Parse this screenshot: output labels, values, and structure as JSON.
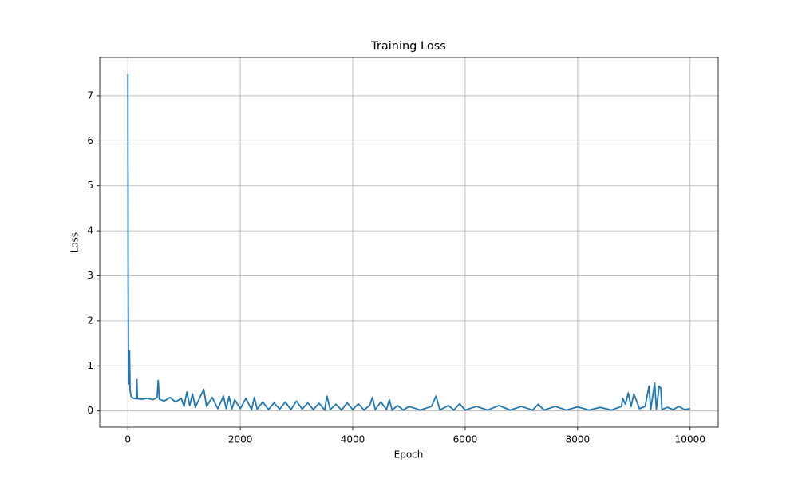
{
  "chart_data": {
    "type": "line",
    "title": "Training Loss",
    "x_label": "Epoch",
    "y_label": "Loss",
    "x": [
      0,
      5,
      10,
      20,
      30,
      40,
      60,
      100,
      150,
      160,
      170,
      250,
      350,
      450,
      520,
      540,
      560,
      650,
      750,
      850,
      950,
      1000,
      1050,
      1100,
      1150,
      1200,
      1300,
      1350,
      1400,
      1500,
      1600,
      1700,
      1750,
      1800,
      1850,
      1900,
      2000,
      2100,
      2200,
      2250,
      2300,
      2400,
      2500,
      2600,
      2700,
      2800,
      2900,
      3000,
      3100,
      3200,
      3300,
      3400,
      3500,
      3540,
      3600,
      3700,
      3800,
      3900,
      4000,
      4100,
      4200,
      4300,
      4350,
      4400,
      4500,
      4600,
      4650,
      4700,
      4800,
      4900,
      5000,
      5200,
      5400,
      5480,
      5550,
      5700,
      5800,
      5900,
      6000,
      6200,
      6400,
      6600,
      6800,
      7000,
      7200,
      7300,
      7400,
      7600,
      7800,
      8000,
      8200,
      8400,
      8600,
      8780,
      8800,
      8850,
      8900,
      8950,
      9000,
      9100,
      9200,
      9270,
      9300,
      9370,
      9400,
      9450,
      9480,
      9500,
      9600,
      9700,
      9800,
      9900,
      10000
    ],
    "values": [
      7.48,
      3.0,
      1.2,
      0.6,
      1.33,
      0.45,
      0.32,
      0.28,
      0.27,
      0.7,
      0.27,
      0.26,
      0.28,
      0.25,
      0.3,
      0.68,
      0.26,
      0.22,
      0.3,
      0.2,
      0.28,
      0.1,
      0.42,
      0.12,
      0.38,
      0.08,
      0.35,
      0.48,
      0.1,
      0.3,
      0.05,
      0.33,
      0.05,
      0.32,
      0.04,
      0.25,
      0.05,
      0.28,
      0.03,
      0.3,
      0.04,
      0.2,
      0.03,
      0.18,
      0.04,
      0.2,
      0.03,
      0.22,
      0.04,
      0.18,
      0.03,
      0.17,
      0.02,
      0.33,
      0.03,
      0.15,
      0.02,
      0.18,
      0.03,
      0.16,
      0.02,
      0.12,
      0.3,
      0.03,
      0.2,
      0.03,
      0.25,
      0.02,
      0.12,
      0.02,
      0.1,
      0.02,
      0.1,
      0.33,
      0.02,
      0.12,
      0.02,
      0.16,
      0.02,
      0.1,
      0.02,
      0.12,
      0.02,
      0.1,
      0.02,
      0.15,
      0.02,
      0.1,
      0.02,
      0.09,
      0.02,
      0.08,
      0.02,
      0.1,
      0.28,
      0.15,
      0.4,
      0.1,
      0.38,
      0.05,
      0.1,
      0.55,
      0.03,
      0.62,
      0.04,
      0.55,
      0.5,
      0.03,
      0.08,
      0.03,
      0.1,
      0.03,
      0.05
    ],
    "color": "#1f77b4",
    "xlim": [
      -500,
      10500
    ],
    "xticks": [
      0,
      2000,
      4000,
      6000,
      8000,
      10000
    ],
    "ylim": [
      -0.36,
      7.85
    ],
    "yticks": [
      0,
      1,
      2,
      3,
      4,
      5,
      6,
      7
    ],
    "grid": true
  }
}
